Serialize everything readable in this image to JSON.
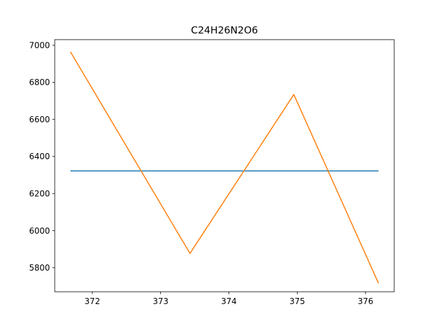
{
  "chart_data": {
    "type": "line",
    "title": "C24H26N2O6",
    "xlabel": "",
    "ylabel": "",
    "xlim": [
      371.45,
      376.42
    ],
    "ylim": [
      5670,
      7030
    ],
    "xticks": [
      372,
      373,
      374,
      375,
      376
    ],
    "yticks": [
      5800,
      6000,
      6200,
      6400,
      6600,
      6800,
      7000
    ],
    "grid": false,
    "series": [
      {
        "color": "#1f77b4",
        "x": [
          371.68,
          376.19
        ],
        "y": [
          6322,
          6322
        ]
      },
      {
        "color": "#ff7f0e",
        "x": [
          371.68,
          373.43,
          374.95,
          376.19
        ],
        "y": [
          6964,
          5877,
          6734,
          5716
        ]
      }
    ]
  }
}
